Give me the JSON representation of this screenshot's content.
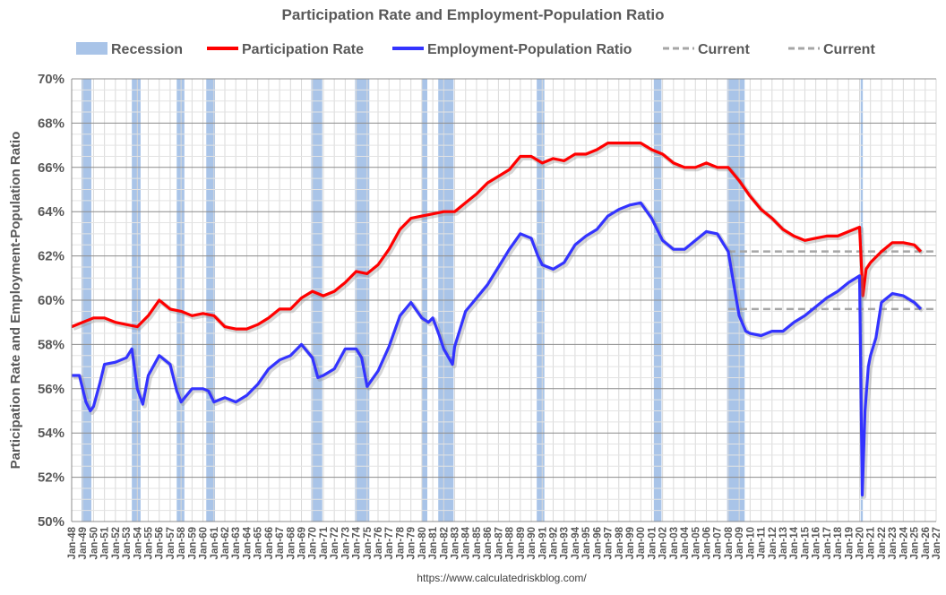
{
  "chart_data": {
    "type": "line",
    "title": "Participation Rate and Employment-Population Ratio",
    "ylabel": "Participation Rate and Employment-Population Ratio",
    "xlabel": "",
    "ylim": [
      50,
      70
    ],
    "y_tick_step": 2,
    "y_tick_suffix": "%",
    "x_range": [
      1948,
      2027
    ],
    "grid": true,
    "legend_position": "top",
    "x_tick_labels": [
      "Jan-48",
      "Jan-49",
      "Jan-50",
      "Jan-51",
      "Jan-52",
      "Jan-53",
      "Jan-54",
      "Jan-55",
      "Jan-56",
      "Jan-57",
      "Jan-58",
      "Jan-59",
      "Jan-60",
      "Jan-61",
      "Jan-62",
      "Jan-63",
      "Jan-64",
      "Jan-65",
      "Jan-66",
      "Jan-67",
      "Jan-68",
      "Jan-69",
      "Jan-70",
      "Jan-71",
      "Jan-72",
      "Jan-73",
      "Jan-74",
      "Jan-75",
      "Jan-76",
      "Jan-77",
      "Jan-78",
      "Jan-79",
      "Jan-80",
      "Jan-81",
      "Jan-82",
      "Jan-83",
      "Jan-84",
      "Jan-85",
      "Jan-86",
      "Jan-87",
      "Jan-88",
      "Jan-89",
      "Jan-90",
      "Jan-91",
      "Jan-92",
      "Jan-93",
      "Jan-94",
      "Jan-95",
      "Jan-96",
      "Jan-97",
      "Jan-98",
      "Jan-99",
      "Jan-00",
      "Jan-01",
      "Jan-02",
      "Jan-03",
      "Jan-04",
      "Jan-05",
      "Jan-06",
      "Jan-07",
      "Jan-08",
      "Jan-09",
      "Jan-10",
      "Jan-11",
      "Jan-12",
      "Jan-13",
      "Jan-14",
      "Jan-15",
      "Jan-16",
      "Jan-17",
      "Jan-18",
      "Jan-19",
      "Jan-20",
      "Jan-21",
      "Jan-22",
      "Jan-23",
      "Jan-24",
      "Jan-25",
      "Jan-26",
      "Jan-27"
    ],
    "legend": [
      {
        "name": "Recession",
        "kind": "patch",
        "color": "#a9c4e8"
      },
      {
        "name": "Participation Rate",
        "kind": "line",
        "color": "#ff0000"
      },
      {
        "name": "Employment-Population Ratio",
        "kind": "line",
        "color": "#3333ff"
      },
      {
        "name": "Current",
        "kind": "dash",
        "color": "#a6a6a6"
      },
      {
        "name": "Current",
        "kind": "dash",
        "color": "#a6a6a6"
      }
    ],
    "recessions": [
      [
        1948.9,
        1949.8
      ],
      [
        1953.5,
        1954.3
      ],
      [
        1957.6,
        1958.3
      ],
      [
        1960.3,
        1961.1
      ],
      [
        1969.9,
        1970.9
      ],
      [
        1973.9,
        1975.2
      ],
      [
        1980.0,
        1980.5
      ],
      [
        1981.5,
        1982.9
      ],
      [
        1990.5,
        1991.2
      ],
      [
        2001.2,
        2001.9
      ],
      [
        2007.9,
        2009.5
      ],
      [
        2020.1,
        2020.3
      ]
    ],
    "series": [
      {
        "name": "Participation Rate",
        "color": "#ff0000",
        "x": [
          1948,
          1949,
          1950,
          1951,
          1952,
          1953,
          1954,
          1955,
          1956,
          1957,
          1958,
          1959,
          1960,
          1961,
          1962,
          1963,
          1964,
          1965,
          1966,
          1967,
          1968,
          1969,
          1970,
          1971,
          1972,
          1973,
          1974,
          1975,
          1976,
          1977,
          1978,
          1979,
          1980,
          1981,
          1982,
          1983,
          1984,
          1985,
          1986,
          1987,
          1988,
          1989,
          1990,
          1991,
          1992,
          1993,
          1994,
          1995,
          1996,
          1997,
          1998,
          1999,
          2000,
          2001,
          2002,
          2003,
          2004,
          2005,
          2006,
          2007,
          2008,
          2009,
          2010,
          2011,
          2012,
          2013,
          2014,
          2015,
          2016,
          2017,
          2018,
          2019,
          2020.0,
          2020.3,
          2020.6,
          2021,
          2022,
          2023,
          2024,
          2025,
          2025.6
        ],
        "values": [
          58.8,
          59.0,
          59.2,
          59.2,
          59.0,
          58.9,
          58.8,
          59.3,
          60.0,
          59.6,
          59.5,
          59.3,
          59.4,
          59.3,
          58.8,
          58.7,
          58.7,
          58.9,
          59.2,
          59.6,
          59.6,
          60.1,
          60.4,
          60.2,
          60.4,
          60.8,
          61.3,
          61.2,
          61.6,
          62.3,
          63.2,
          63.7,
          63.8,
          63.9,
          64.0,
          64.0,
          64.4,
          64.8,
          65.3,
          65.6,
          65.9,
          66.5,
          66.5,
          66.2,
          66.4,
          66.3,
          66.6,
          66.6,
          66.8,
          67.1,
          67.1,
          67.1,
          67.1,
          66.8,
          66.6,
          66.2,
          66.0,
          66.0,
          66.2,
          66.0,
          66.0,
          65.4,
          64.7,
          64.1,
          63.7,
          63.2,
          62.9,
          62.7,
          62.8,
          62.9,
          62.9,
          63.1,
          63.3,
          60.2,
          61.4,
          61.7,
          62.2,
          62.6,
          62.6,
          62.5,
          62.2
        ]
      },
      {
        "name": "Employment-Population Ratio",
        "color": "#3333ff",
        "x": [
          1948,
          1948.7,
          1949.3,
          1949.7,
          1950,
          1950.6,
          1951,
          1952,
          1953,
          1953.5,
          1954,
          1954.5,
          1955,
          1956,
          1957,
          1957.6,
          1958,
          1959,
          1960,
          1960.5,
          1961,
          1961.5,
          1962,
          1963,
          1964,
          1965,
          1966,
          1967,
          1968,
          1969,
          1970,
          1970.5,
          1971,
          1972,
          1973,
          1974,
          1974.5,
          1975,
          1976,
          1977,
          1978,
          1979,
          1980,
          1980.6,
          1981,
          1981.6,
          1982,
          1982.8,
          1983,
          1984,
          1985,
          1986,
          1987,
          1988,
          1989,
          1990,
          1990.6,
          1991,
          1992,
          1993,
          1994,
          1995,
          1996,
          1997,
          1998,
          1999,
          2000,
          2001,
          2002,
          2003,
          2004,
          2005,
          2006,
          2007,
          2008,
          2009,
          2009.6,
          2010,
          2011,
          2012,
          2013,
          2014,
          2015,
          2016,
          2017,
          2018,
          2019,
          2020.0,
          2020.25,
          2020.5,
          2020.8,
          2021,
          2021.5,
          2022,
          2023,
          2024,
          2025,
          2025.6
        ],
        "values": [
          56.6,
          56.6,
          55.4,
          55.0,
          55.2,
          56.3,
          57.1,
          57.2,
          57.4,
          57.8,
          56.0,
          55.3,
          56.6,
          57.5,
          57.1,
          55.9,
          55.4,
          56.0,
          56.0,
          55.9,
          55.4,
          55.5,
          55.6,
          55.4,
          55.7,
          56.2,
          56.9,
          57.3,
          57.5,
          58.0,
          57.4,
          56.5,
          56.6,
          56.9,
          57.8,
          57.8,
          57.4,
          56.1,
          56.8,
          57.9,
          59.3,
          59.9,
          59.2,
          59.0,
          59.2,
          58.4,
          57.8,
          57.1,
          57.9,
          59.5,
          60.1,
          60.7,
          61.5,
          62.3,
          63.0,
          62.8,
          62.0,
          61.6,
          61.4,
          61.7,
          62.5,
          62.9,
          63.2,
          63.8,
          64.1,
          64.3,
          64.4,
          63.7,
          62.7,
          62.3,
          62.3,
          62.7,
          63.1,
          63.0,
          62.2,
          59.3,
          58.6,
          58.5,
          58.4,
          58.6,
          58.6,
          59.0,
          59.3,
          59.7,
          60.1,
          60.4,
          60.8,
          61.1,
          51.2,
          55.0,
          57.0,
          57.5,
          58.3,
          59.9,
          60.3,
          60.2,
          59.9,
          59.6
        ]
      }
    ],
    "current_lines": [
      {
        "name": "Current",
        "value": 62.2,
        "x_start": 2008.0,
        "x_end": 2027
      },
      {
        "name": "Current",
        "value": 59.6,
        "x_start": 2008.0,
        "x_end": 2027
      }
    ]
  },
  "source": "https://www.calculatedriskblog.com/"
}
